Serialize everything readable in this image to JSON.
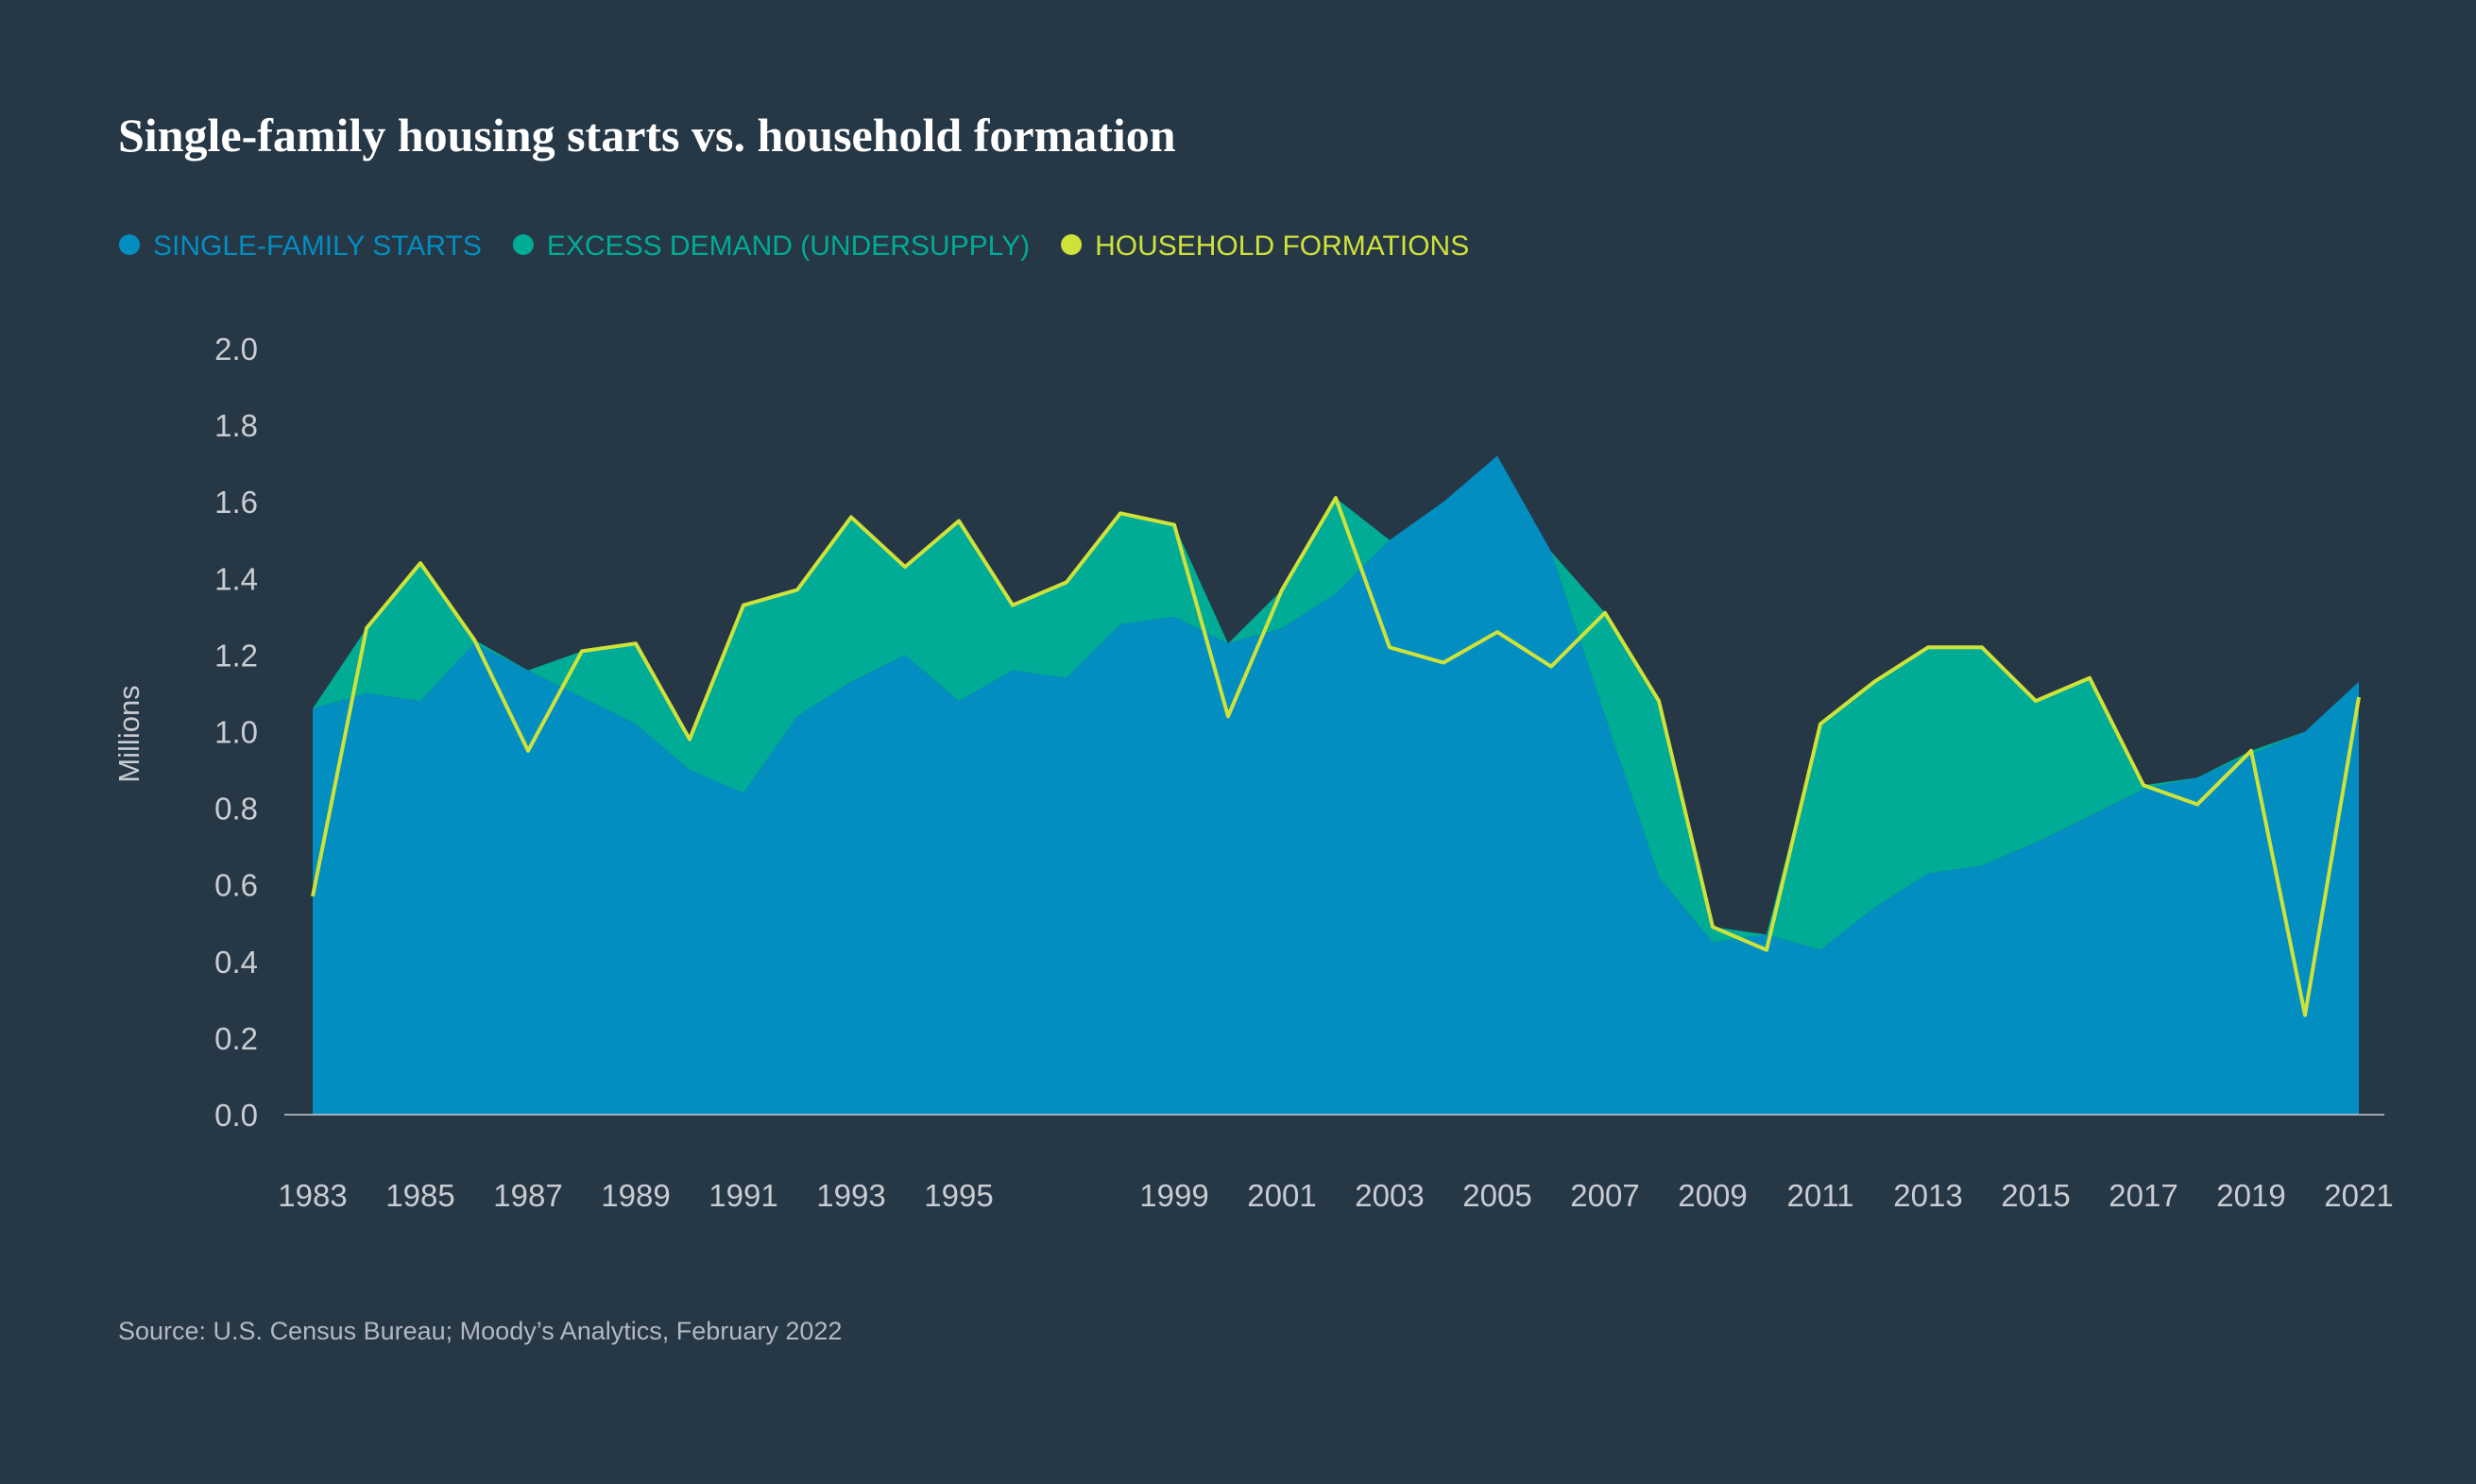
{
  "chart_data": {
    "type": "area",
    "title": "Single-family housing starts vs. household formation",
    "y_label": "Millions",
    "source": "Source: U.S. Census Bureau; Moody’s Analytics, February 2022",
    "x": [
      1983,
      1984,
      1985,
      1986,
      1987,
      1988,
      1989,
      1990,
      1991,
      1992,
      1993,
      1994,
      1995,
      1996,
      1997,
      1998,
      1999,
      2000,
      2001,
      2002,
      2003,
      2004,
      2005,
      2006,
      2007,
      2008,
      2009,
      2010,
      2011,
      2012,
      2013,
      2014,
      2015,
      2016,
      2017,
      2018,
      2019,
      2020,
      2021
    ],
    "series": [
      {
        "name": "SINGLE-FAMILY STARTS",
        "color": "#028ec1",
        "style": "area",
        "values": [
          1.06,
          1.1,
          1.08,
          1.23,
          1.16,
          1.09,
          1.02,
          0.9,
          0.84,
          1.04,
          1.13,
          1.2,
          1.08,
          1.16,
          1.14,
          1.28,
          1.3,
          1.23,
          1.27,
          1.36,
          1.5,
          1.6,
          1.72,
          1.47,
          1.04,
          0.62,
          0.45,
          0.47,
          0.43,
          0.54,
          0.63,
          0.65,
          0.71,
          0.78,
          0.85,
          0.88,
          0.94,
          1.0,
          1.13
        ]
      },
      {
        "name": "EXCESS DEMAND (UNDERSUPPLY)",
        "color": "#00ac96",
        "style": "area",
        "values": [
          0,
          0.17,
          0.36,
          0.01,
          0,
          0.12,
          0.21,
          0.08,
          0.49,
          0.33,
          0.43,
          0.23,
          0.47,
          0.17,
          0.25,
          0.29,
          0.24,
          0,
          0.1,
          0.25,
          0,
          0,
          0,
          0,
          0.27,
          0.46,
          0.04,
          0,
          0.59,
          0.59,
          0.59,
          0.57,
          0.37,
          0.36,
          0.01,
          0,
          0.01,
          0,
          0
        ]
      },
      {
        "name": "HOUSEHOLD FORMATIONS",
        "color": "#cfe23a",
        "style": "line",
        "values": [
          0.57,
          1.27,
          1.44,
          1.24,
          0.95,
          1.21,
          1.23,
          0.98,
          1.33,
          1.37,
          1.56,
          1.43,
          1.55,
          1.33,
          1.39,
          1.57,
          1.54,
          1.04,
          1.37,
          1.61,
          1.22,
          1.18,
          1.26,
          1.17,
          1.31,
          1.08,
          0.49,
          0.43,
          1.02,
          1.13,
          1.22,
          1.22,
          1.08,
          1.14,
          0.86,
          0.81,
          0.95,
          0.26,
          1.09
        ]
      }
    ],
    "xlim": [
      1983,
      2021
    ],
    "xticks": [
      1983,
      1985,
      1987,
      1989,
      1991,
      1993,
      1995,
      1999,
      2001,
      2003,
      2005,
      2007,
      2009,
      2011,
      2013,
      2015,
      2017,
      2019,
      2021
    ],
    "ylim": [
      0,
      2
    ],
    "yticks": [
      {
        "value": 0,
        "label": "0.0"
      },
      {
        "value": 0.2,
        "label": "0.2"
      },
      {
        "value": 0.4,
        "label": "0.4"
      },
      {
        "value": 0.6,
        "label": "0.6"
      },
      {
        "value": 0.8,
        "label": "0.8"
      },
      {
        "value": 1,
        "label": "1.0"
      },
      {
        "value": 1.2,
        "label": "1.2"
      },
      {
        "value": 1.4,
        "label": "1.4"
      },
      {
        "value": 1.6,
        "label": "1.6"
      },
      {
        "value": 1.8,
        "label": "1.8"
      },
      {
        "value": 2,
        "label": "2.0"
      }
    ]
  }
}
